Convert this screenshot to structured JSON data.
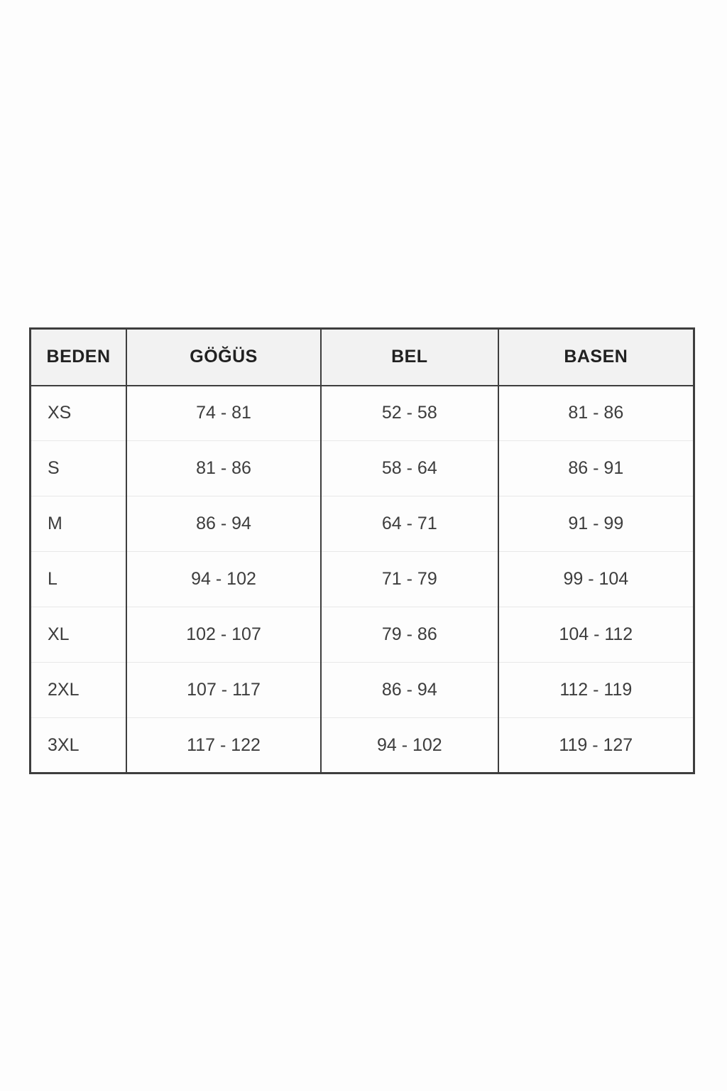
{
  "chart_data": {
    "type": "table",
    "title": "",
    "columns": [
      "BEDEN",
      "GÖĞÜS",
      "BEL",
      "BASEN"
    ],
    "rows": [
      [
        "XS",
        "74 - 81",
        "52 - 58",
        "81 - 86"
      ],
      [
        "S",
        "81 - 86",
        "58 - 64",
        "86 - 91"
      ],
      [
        "M",
        "86 - 94",
        "64 - 71",
        "91 - 99"
      ],
      [
        "L",
        "94 - 102",
        "71 - 79",
        "99 - 104"
      ],
      [
        "XL",
        "102 - 107",
        "79 - 86",
        "104 - 112"
      ],
      [
        "2XL",
        "107 - 117",
        "86 - 94",
        "112 - 119"
      ],
      [
        "3XL",
        "117 - 122",
        "94 - 102",
        "119 - 127"
      ]
    ],
    "layout": {
      "header_background": "#f2f2f2",
      "border_color": "#3e3e3e",
      "row_divider_color": "#e8e8e8",
      "page_background": "#fdfdfd"
    }
  }
}
